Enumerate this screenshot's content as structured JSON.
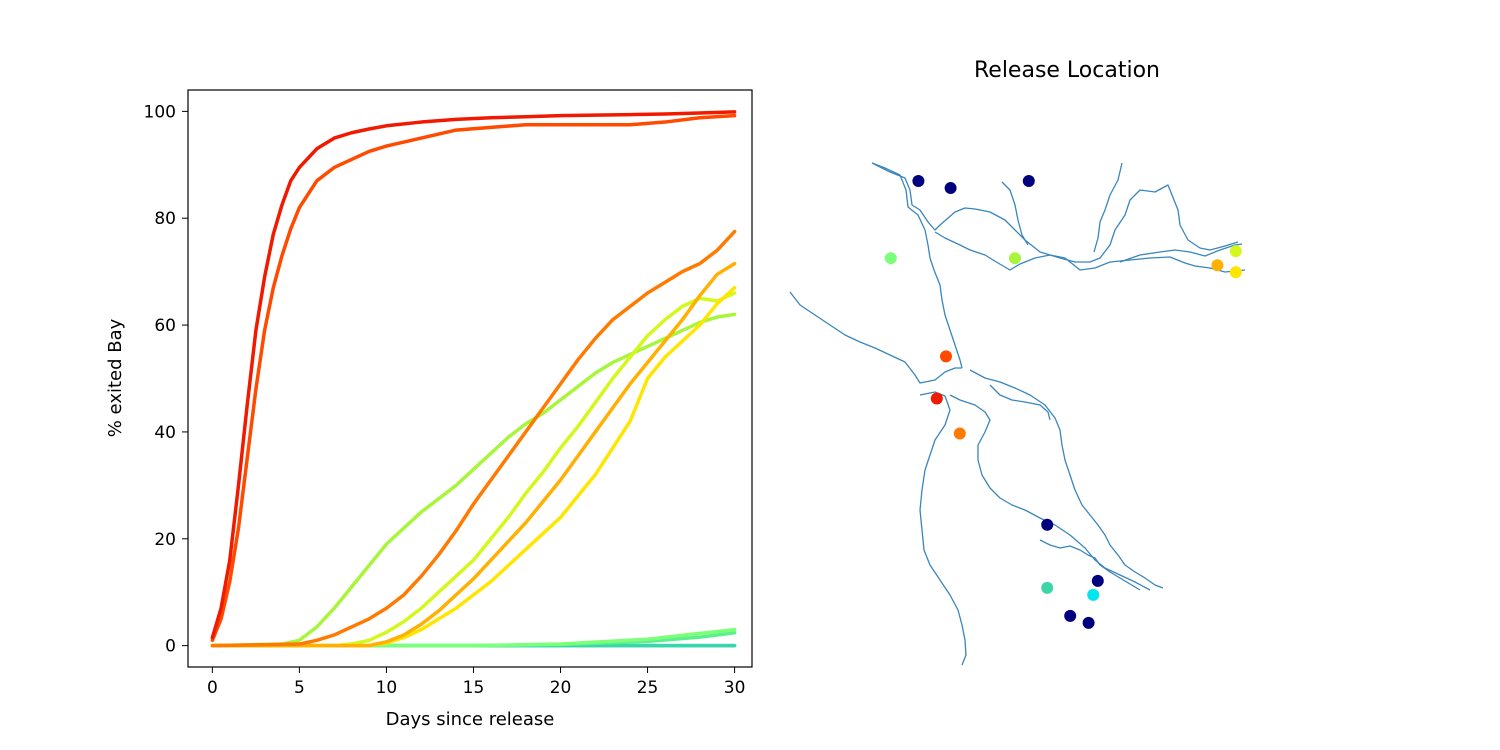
{
  "chart_data": [
    {
      "type": "line",
      "title": "",
      "xlabel": "Days since release",
      "ylabel": "% exited Bay",
      "xlim": [
        -1.4,
        31.0
      ],
      "ylim": [
        -4,
        104
      ],
      "xticks": [
        "0",
        "5",
        "10",
        "15",
        "20",
        "25",
        "30"
      ],
      "yticks": [
        "0",
        "20",
        "40",
        "60",
        "80",
        "100"
      ],
      "grid": false,
      "series": [
        {
          "color": "#00e5ee",
          "points": [
            [
              0,
              0
            ],
            [
              30,
              0
            ]
          ]
        },
        {
          "color": "#3bd6a8",
          "points": [
            [
              0,
              0
            ],
            [
              30,
              0
            ]
          ]
        },
        {
          "color": "#5af08c",
          "points": [
            [
              0,
              0
            ],
            [
              15,
              0
            ],
            [
              20,
              0.2
            ],
            [
              25,
              0.8
            ],
            [
              28,
              1.6
            ],
            [
              30,
              2.4
            ]
          ]
        },
        {
          "color": "#7cff79",
          "points": [
            [
              0,
              0
            ],
            [
              15,
              0
            ],
            [
              20,
              0.3
            ],
            [
              25,
              1.2
            ],
            [
              28,
              2.3
            ],
            [
              30,
              3.0
            ]
          ]
        },
        {
          "color": "#a8f53c",
          "points": [
            [
              0,
              0
            ],
            [
              4,
              0.3
            ],
            [
              5,
              1
            ],
            [
              6,
              3.5
            ],
            [
              7,
              7
            ],
            [
              8,
              11
            ],
            [
              9,
              15
            ],
            [
              10,
              19
            ],
            [
              11,
              22
            ],
            [
              12,
              25
            ],
            [
              13,
              27.5
            ],
            [
              14,
              30
            ],
            [
              15,
              33
            ],
            [
              16,
              36
            ],
            [
              17,
              39
            ],
            [
              18,
              41.5
            ],
            [
              19,
              43.5
            ],
            [
              20,
              46
            ],
            [
              21,
              48.5
            ],
            [
              22,
              51
            ],
            [
              23,
              53
            ],
            [
              24,
              54.5
            ],
            [
              25,
              56
            ],
            [
              26,
              57.5
            ],
            [
              27,
              59
            ],
            [
              28,
              60.5
            ],
            [
              29,
              61.5
            ],
            [
              30,
              62
            ]
          ]
        },
        {
          "color": "#d4f71c",
          "points": [
            [
              0,
              0
            ],
            [
              7,
              0
            ],
            [
              8,
              0.3
            ],
            [
              9,
              1
            ],
            [
              10,
              2.5
            ],
            [
              11,
              4.5
            ],
            [
              12,
              7
            ],
            [
              13,
              10
            ],
            [
              14,
              13
            ],
            [
              15,
              16
            ],
            [
              16,
              20
            ],
            [
              17,
              24
            ],
            [
              18,
              28.5
            ],
            [
              19,
              32.5
            ],
            [
              20,
              37
            ],
            [
              21,
              41
            ],
            [
              22,
              45.5
            ],
            [
              23,
              50
            ],
            [
              24,
              54
            ],
            [
              25,
              58
            ],
            [
              26,
              61
            ],
            [
              27,
              63.5
            ],
            [
              28,
              65
            ],
            [
              29,
              64.5
            ],
            [
              30,
              66
            ]
          ]
        },
        {
          "color": "#ffe600",
          "points": [
            [
              0,
              0
            ],
            [
              9,
              0
            ],
            [
              10,
              0.5
            ],
            [
              11,
              1.5
            ],
            [
              12,
              3
            ],
            [
              13,
              5
            ],
            [
              14,
              7
            ],
            [
              15,
              9.5
            ],
            [
              16,
              12
            ],
            [
              17,
              15
            ],
            [
              18,
              18
            ],
            [
              19,
              21
            ],
            [
              20,
              24
            ],
            [
              21,
              28
            ],
            [
              22,
              32
            ],
            [
              23,
              37
            ],
            [
              24,
              42
            ],
            [
              25,
              50
            ],
            [
              26,
              54
            ],
            [
              27,
              57
            ],
            [
              28,
              60
            ],
            [
              29,
              64
            ],
            [
              30,
              67
            ]
          ]
        },
        {
          "color": "#ffb000",
          "points": [
            [
              0,
              0
            ],
            [
              9,
              0
            ],
            [
              10,
              0.7
            ],
            [
              11,
              2
            ],
            [
              12,
              4
            ],
            [
              13,
              6.5
            ],
            [
              14,
              9.5
            ],
            [
              15,
              12.5
            ],
            [
              16,
              16
            ],
            [
              17,
              19.5
            ],
            [
              18,
              23
            ],
            [
              19,
              27
            ],
            [
              20,
              31
            ],
            [
              21,
              35.5
            ],
            [
              22,
              40
            ],
            [
              23,
              44.5
            ],
            [
              24,
              49
            ],
            [
              25,
              53
            ],
            [
              26,
              57
            ],
            [
              27,
              61
            ],
            [
              28,
              65.5
            ],
            [
              29,
              69.5
            ],
            [
              30,
              71.5
            ]
          ]
        },
        {
          "color": "#ff7a00",
          "points": [
            [
              0,
              0
            ],
            [
              5,
              0.3
            ],
            [
              6,
              1
            ],
            [
              7,
              2
            ],
            [
              8,
              3.5
            ],
            [
              9,
              5
            ],
            [
              10,
              7
            ],
            [
              11,
              9.5
            ],
            [
              12,
              13
            ],
            [
              13,
              17
            ],
            [
              14,
              21.5
            ],
            [
              15,
              26.5
            ],
            [
              16,
              31
            ],
            [
              17,
              35.5
            ],
            [
              18,
              40
            ],
            [
              19,
              44.5
            ],
            [
              20,
              49
            ],
            [
              21,
              53.5
            ],
            [
              22,
              57.5
            ],
            [
              23,
              61
            ],
            [
              24,
              63.5
            ],
            [
              25,
              66
            ],
            [
              26,
              68
            ],
            [
              27,
              70
            ],
            [
              28,
              71.5
            ],
            [
              29,
              74
            ],
            [
              30,
              77.5
            ]
          ]
        },
        {
          "color": "#ff4a00",
          "points": [
            [
              0,
              1
            ],
            [
              0.5,
              5
            ],
            [
              1,
              12
            ],
            [
              1.5,
              22
            ],
            [
              2,
              35
            ],
            [
              2.5,
              48
            ],
            [
              3,
              59
            ],
            [
              3.5,
              67
            ],
            [
              4,
              73
            ],
            [
              4.5,
              78
            ],
            [
              5,
              82
            ],
            [
              6,
              87
            ],
            [
              7,
              89.5
            ],
            [
              8,
              91
            ],
            [
              9,
              92.5
            ],
            [
              10,
              93.5
            ],
            [
              12,
              95
            ],
            [
              14,
              96.5
            ],
            [
              16,
              97
            ],
            [
              18,
              97.5
            ],
            [
              20,
              97.5
            ],
            [
              22,
              97.5
            ],
            [
              24,
              97.5
            ],
            [
              26,
              98
            ],
            [
              28,
              98.8
            ],
            [
              30,
              99.2
            ]
          ]
        },
        {
          "color": "#f01a00",
          "points": [
            [
              0,
              1.5
            ],
            [
              0.5,
              7
            ],
            [
              1,
              16
            ],
            [
              1.5,
              30
            ],
            [
              2,
              45
            ],
            [
              2.5,
              59
            ],
            [
              3,
              69
            ],
            [
              3.5,
              77
            ],
            [
              4,
              82.5
            ],
            [
              4.5,
              87
            ],
            [
              5,
              89.5
            ],
            [
              6,
              93
            ],
            [
              7,
              95
            ],
            [
              8,
              96
            ],
            [
              9,
              96.7
            ],
            [
              10,
              97.3
            ],
            [
              12,
              98
            ],
            [
              14,
              98.5
            ],
            [
              16,
              98.8
            ],
            [
              18,
              99
            ],
            [
              20,
              99.2
            ],
            [
              22,
              99.3
            ],
            [
              24,
              99.4
            ],
            [
              26,
              99.5
            ],
            [
              28,
              99.7
            ],
            [
              30,
              99.9
            ]
          ]
        }
      ]
    },
    {
      "type": "scatter",
      "title": "Release Location",
      "points": [
        {
          "x": 0.2,
          "y": 0.9,
          "color": "#00007f"
        },
        {
          "x": 0.3,
          "y": 0.88,
          "color": "#00007f"
        },
        {
          "x": 0.45,
          "y": 0.87,
          "color": "#00007f"
        }
      ]
    }
  ],
  "map": {
    "release_points": [
      {
        "lon": -122.49,
        "lat": 38.09,
        "color": "#00007f"
      },
      {
        "lon": -122.42,
        "lat": 38.08,
        "color": "#00007f"
      },
      {
        "lon": -122.25,
        "lat": 38.09,
        "color": "#00007f"
      },
      {
        "lon": -122.55,
        "lat": 37.98,
        "color": "#7cff79"
      },
      {
        "lon": -122.28,
        "lat": 37.98,
        "color": "#a8f53c"
      },
      {
        "lon": -121.84,
        "lat": 37.97,
        "color": "#ffb000"
      },
      {
        "lon": -121.8,
        "lat": 37.99,
        "color": "#d4f71c"
      },
      {
        "lon": -121.8,
        "lat": 37.96,
        "color": "#ffe600"
      },
      {
        "lon": -122.43,
        "lat": 37.84,
        "color": "#ff4a00"
      },
      {
        "lon": -122.45,
        "lat": 37.78,
        "color": "#f01a00"
      },
      {
        "lon": -122.4,
        "lat": 37.73,
        "color": "#ff7a00"
      },
      {
        "lon": -122.21,
        "lat": 37.6,
        "color": "#00007f"
      },
      {
        "lon": -122.21,
        "lat": 37.51,
        "color": "#3bd6a8"
      },
      {
        "lon": -122.1,
        "lat": 37.52,
        "color": "#00007f"
      },
      {
        "lon": -122.11,
        "lat": 37.5,
        "color": "#00e5ee"
      },
      {
        "lon": -122.16,
        "lat": 37.47,
        "color": "#00007f"
      },
      {
        "lon": -122.12,
        "lat": 37.46,
        "color": "#00007f"
      }
    ],
    "shoreline_color": "#3a86bc"
  }
}
